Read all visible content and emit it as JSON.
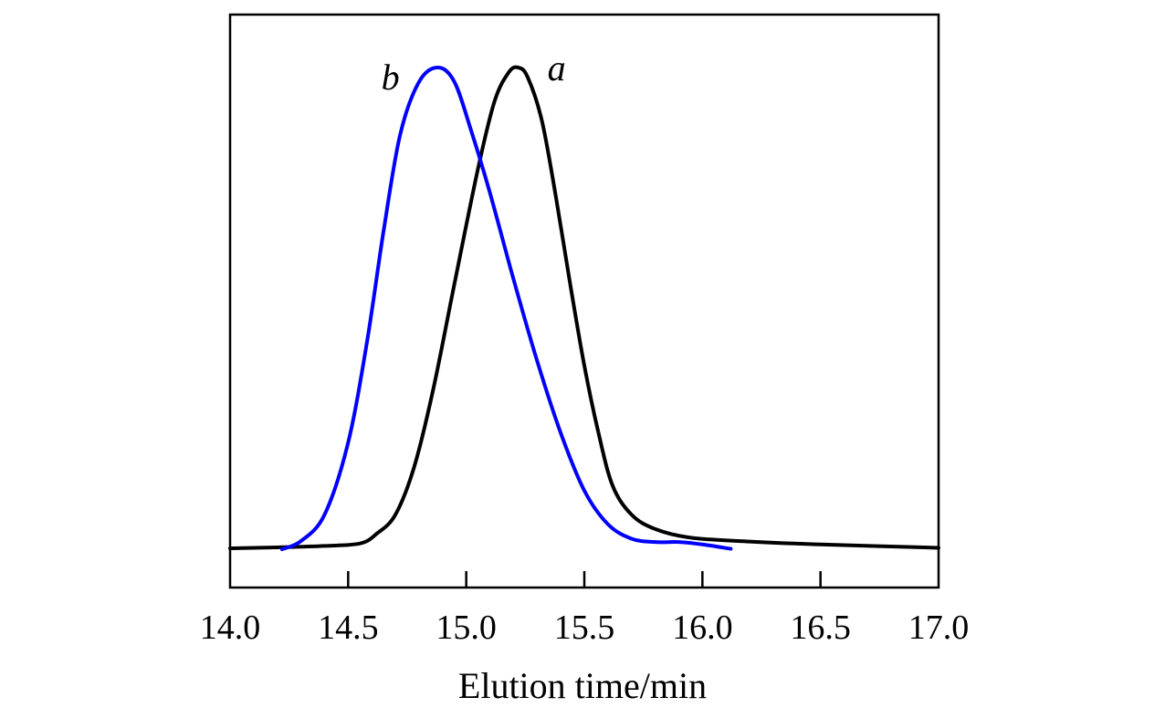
{
  "chart_data": {
    "type": "line",
    "title": "",
    "xlabel": "Elution time/min",
    "ylabel": "",
    "xlim": [
      14.0,
      17.0
    ],
    "ylim": [
      0,
      1.09
    ],
    "x_ticks": [
      "14.0",
      "14.5",
      "15.0",
      "15.5",
      "16.0",
      "16.5",
      "17.0"
    ],
    "y_ticks": [],
    "grid": false,
    "legend": "none",
    "series": [
      {
        "label": "a",
        "color": "#000000",
        "points": [
          [
            14.0,
            0.0
          ],
          [
            14.2,
            0.002
          ],
          [
            14.4,
            0.005
          ],
          [
            14.55,
            0.01
          ],
          [
            14.62,
            0.03
          ],
          [
            14.7,
            0.07
          ],
          [
            14.78,
            0.17
          ],
          [
            14.86,
            0.33
          ],
          [
            14.95,
            0.55
          ],
          [
            15.05,
            0.79
          ],
          [
            15.12,
            0.93
          ],
          [
            15.18,
            0.99
          ],
          [
            15.22,
            1.0
          ],
          [
            15.26,
            0.98
          ],
          [
            15.32,
            0.89
          ],
          [
            15.38,
            0.73
          ],
          [
            15.44,
            0.55
          ],
          [
            15.5,
            0.38
          ],
          [
            15.56,
            0.24
          ],
          [
            15.62,
            0.13
          ],
          [
            15.7,
            0.07
          ],
          [
            15.8,
            0.04
          ],
          [
            15.95,
            0.022
          ],
          [
            16.2,
            0.014
          ],
          [
            16.5,
            0.008
          ],
          [
            17.0,
            0.001
          ]
        ]
      },
      {
        "label": "b",
        "color": "#0000ff",
        "points": [
          [
            14.22,
            -0.002
          ],
          [
            14.3,
            0.015
          ],
          [
            14.4,
            0.07
          ],
          [
            14.5,
            0.22
          ],
          [
            14.58,
            0.43
          ],
          [
            14.65,
            0.66
          ],
          [
            14.72,
            0.86
          ],
          [
            14.8,
            0.97
          ],
          [
            14.88,
            1.0
          ],
          [
            14.95,
            0.97
          ],
          [
            15.02,
            0.87
          ],
          [
            15.1,
            0.74
          ],
          [
            15.2,
            0.56
          ],
          [
            15.3,
            0.39
          ],
          [
            15.4,
            0.24
          ],
          [
            15.5,
            0.12
          ],
          [
            15.6,
            0.05
          ],
          [
            15.7,
            0.02
          ],
          [
            15.8,
            0.013
          ],
          [
            15.9,
            0.013
          ],
          [
            16.0,
            0.008
          ],
          [
            16.12,
            -0.001
          ]
        ]
      }
    ]
  }
}
